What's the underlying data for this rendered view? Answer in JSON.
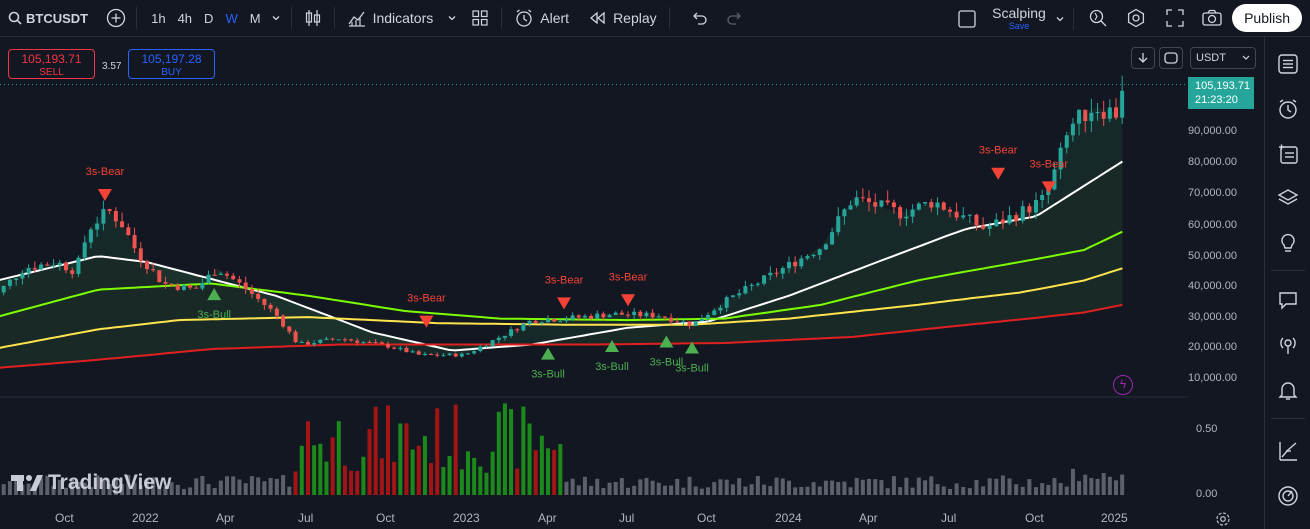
{
  "symbol": "BTCUSDT",
  "timeframes": [
    "1h",
    "4h",
    "D",
    "W",
    "M"
  ],
  "active_timeframe": "W",
  "toolbar": {
    "indicators_label": "Indicators",
    "alert_label": "Alert",
    "replay_label": "Replay",
    "layout_name": "Scalping",
    "layout_status": "Save",
    "publish_label": "Publish"
  },
  "trade": {
    "sell_price": "105,193.71",
    "sell_label": "SELL",
    "spread": "3.57",
    "buy_price": "105,197.28",
    "buy_label": "BUY"
  },
  "currency": "USDT",
  "last_price": "105,193.71",
  "countdown": "21:23:20",
  "price_axis": [
    "90,000.00",
    "80,000.00",
    "70,000.00",
    "60,000.00",
    "50,000.00",
    "40,000.00",
    "30,000.00",
    "20,000.00",
    "10,000.00"
  ],
  "volume_axis": [
    "0.50",
    "0.00"
  ],
  "time_axis": [
    "Oct",
    "2022",
    "Apr",
    "Jul",
    "Oct",
    "2023",
    "Apr",
    "Jul",
    "Oct",
    "2024",
    "Apr",
    "Jul",
    "Oct",
    "2025"
  ],
  "watermark": "TradingView",
  "signals": {
    "bear": "3s-Bear",
    "bull": "3s-Bull"
  },
  "colors": {
    "bg": "#131722",
    "up": "#26a69a",
    "down": "#ef5350",
    "ema_white": "#ffffff",
    "ema_green": "#7cfc00",
    "ema_yellow": "#ffe44d",
    "ema_red": "#e02020",
    "bull_signal": "#4caf50",
    "bear_signal": "#f44336"
  },
  "chart_data": {
    "type": "candlestick",
    "ylabel": "",
    "y_range": [
      7000,
      112000
    ],
    "closes_approx": [
      {
        "date": "2021-09",
        "close": 43000
      },
      {
        "date": "2021-11",
        "close": 65000
      },
      {
        "date": "2022-01",
        "close": 38000
      },
      {
        "date": "2022-04",
        "close": 40000
      },
      {
        "date": "2022-06",
        "close": 19500
      },
      {
        "date": "2022-11",
        "close": 16500
      },
      {
        "date": "2023-03",
        "close": 28000
      },
      {
        "date": "2023-07",
        "close": 30000
      },
      {
        "date": "2023-10",
        "close": 34000
      },
      {
        "date": "2024-03",
        "close": 70000
      },
      {
        "date": "2024-08",
        "close": 58000
      },
      {
        "date": "2024-11",
        "close": 97000
      },
      {
        "date": "2025-01",
        "close": 105193.71
      }
    ],
    "series": [
      {
        "name": "",
        "color": "#ffffff"
      },
      {
        "name": "",
        "color": "#7cfc00"
      },
      {
        "name": "",
        "color": "#ffe44d"
      },
      {
        "name": "",
        "color": "#e02020"
      }
    ]
  }
}
